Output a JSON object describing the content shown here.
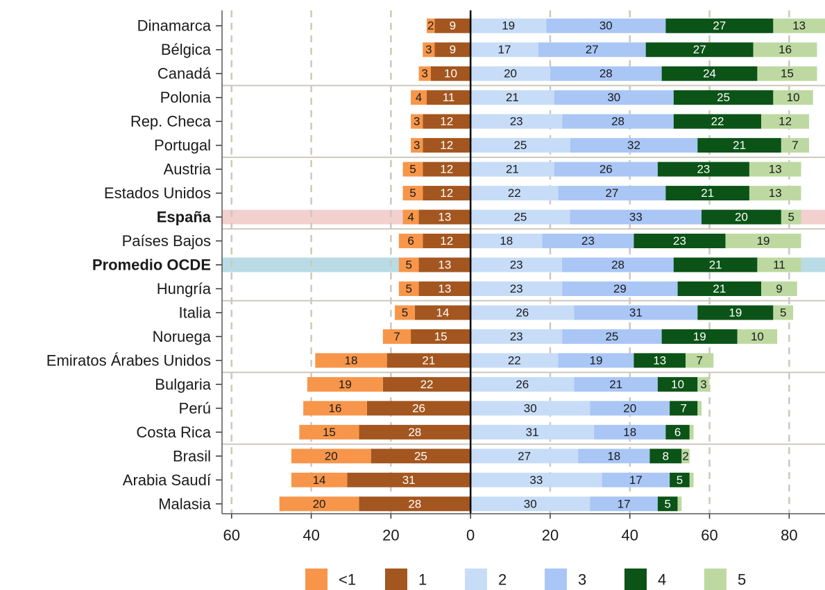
{
  "chart_data": {
    "type": "diverging-bar",
    "categories": [
      "Dinamarca",
      "Bélgica",
      "Canadá",
      "Polonia",
      "Rep. Checa",
      "Portugal",
      "Austria",
      "Estados Unidos",
      "España",
      "Países Bajos",
      "Promedio OCDE",
      "Hungría",
      "Italia",
      "Noruega",
      "Emiratos Árabes Unidos",
      "Bulgaria",
      "Perú",
      "Costa Rica",
      "Brasil",
      "Arabia Saudí",
      "Malasia"
    ],
    "series": [
      {
        "name": "<1",
        "color": "#f7964a",
        "label_color": "#1a1a1a",
        "values": [
          -2,
          -3,
          -3,
          -4,
          -3,
          -3,
          -5,
          -5,
          -4,
          -6,
          -5,
          -5,
          -5,
          -7,
          -18,
          -19,
          -16,
          -15,
          -20,
          -14,
          -20
        ],
        "value_labels": [
          "2",
          "3",
          "3",
          "4",
          "3",
          "3",
          "5",
          "5",
          "4",
          "6",
          "5",
          "5",
          "5",
          "7",
          "18",
          "19",
          "16",
          "15",
          "20",
          "14",
          "20"
        ]
      },
      {
        "name": "1",
        "color": "#a3561f",
        "label_color": "#ffffff",
        "values": [
          -9,
          -9,
          -10,
          -11,
          -12,
          -12,
          -12,
          -12,
          -13,
          -12,
          -13,
          -13,
          -14,
          -15,
          -21,
          -22,
          -26,
          -28,
          -25,
          -31,
          -28
        ],
        "value_labels": [
          "9",
          "9",
          "10",
          "11",
          "12",
          "12",
          "12",
          "12",
          "13",
          "12",
          "13",
          "13",
          "14",
          "15",
          "21",
          "22",
          "26",
          "28",
          "25",
          "31",
          "28"
        ]
      },
      {
        "name": "2",
        "color": "#c7dcf7",
        "label_color": "#1a1a1a",
        "values": [
          19,
          17,
          20,
          21,
          23,
          25,
          21,
          22,
          25,
          18,
          23,
          23,
          26,
          23,
          22,
          26,
          30,
          31,
          27,
          33,
          30
        ]
      },
      {
        "name": "3",
        "color": "#a9c6f5",
        "label_color": "#1a1a1a",
        "values": [
          30,
          27,
          28,
          30,
          28,
          32,
          26,
          27,
          33,
          23,
          28,
          29,
          31,
          25,
          19,
          21,
          20,
          18,
          18,
          17,
          17
        ]
      },
      {
        "name": "4",
        "color": "#0b5316",
        "label_color": "#ffffff",
        "values": [
          27,
          27,
          24,
          25,
          22,
          21,
          23,
          21,
          20,
          23,
          21,
          21,
          19,
          19,
          13,
          10,
          7,
          6,
          8,
          5,
          5
        ]
      },
      {
        "name": "5",
        "color": "#bdd9a1",
        "label_color": "#1a1a1a",
        "values": [
          13,
          16,
          15,
          10,
          12,
          7,
          13,
          13,
          5,
          19,
          11,
          9,
          5,
          10,
          7,
          3,
          1,
          1,
          2,
          1,
          1
        ]
      }
    ],
    "highlights": [
      {
        "category": "España",
        "color": "#f2d0ce"
      },
      {
        "category": "Promedio OCDE",
        "color": "#b9dbe6"
      }
    ],
    "xlim": [
      -62.4,
      89
    ],
    "xticks": [
      {
        "value": -60,
        "label": "60"
      },
      {
        "value": -40,
        "label": "40"
      },
      {
        "value": -20,
        "label": "20"
      },
      0,
      20,
      40,
      60,
      80
    ],
    "grid": true
  }
}
